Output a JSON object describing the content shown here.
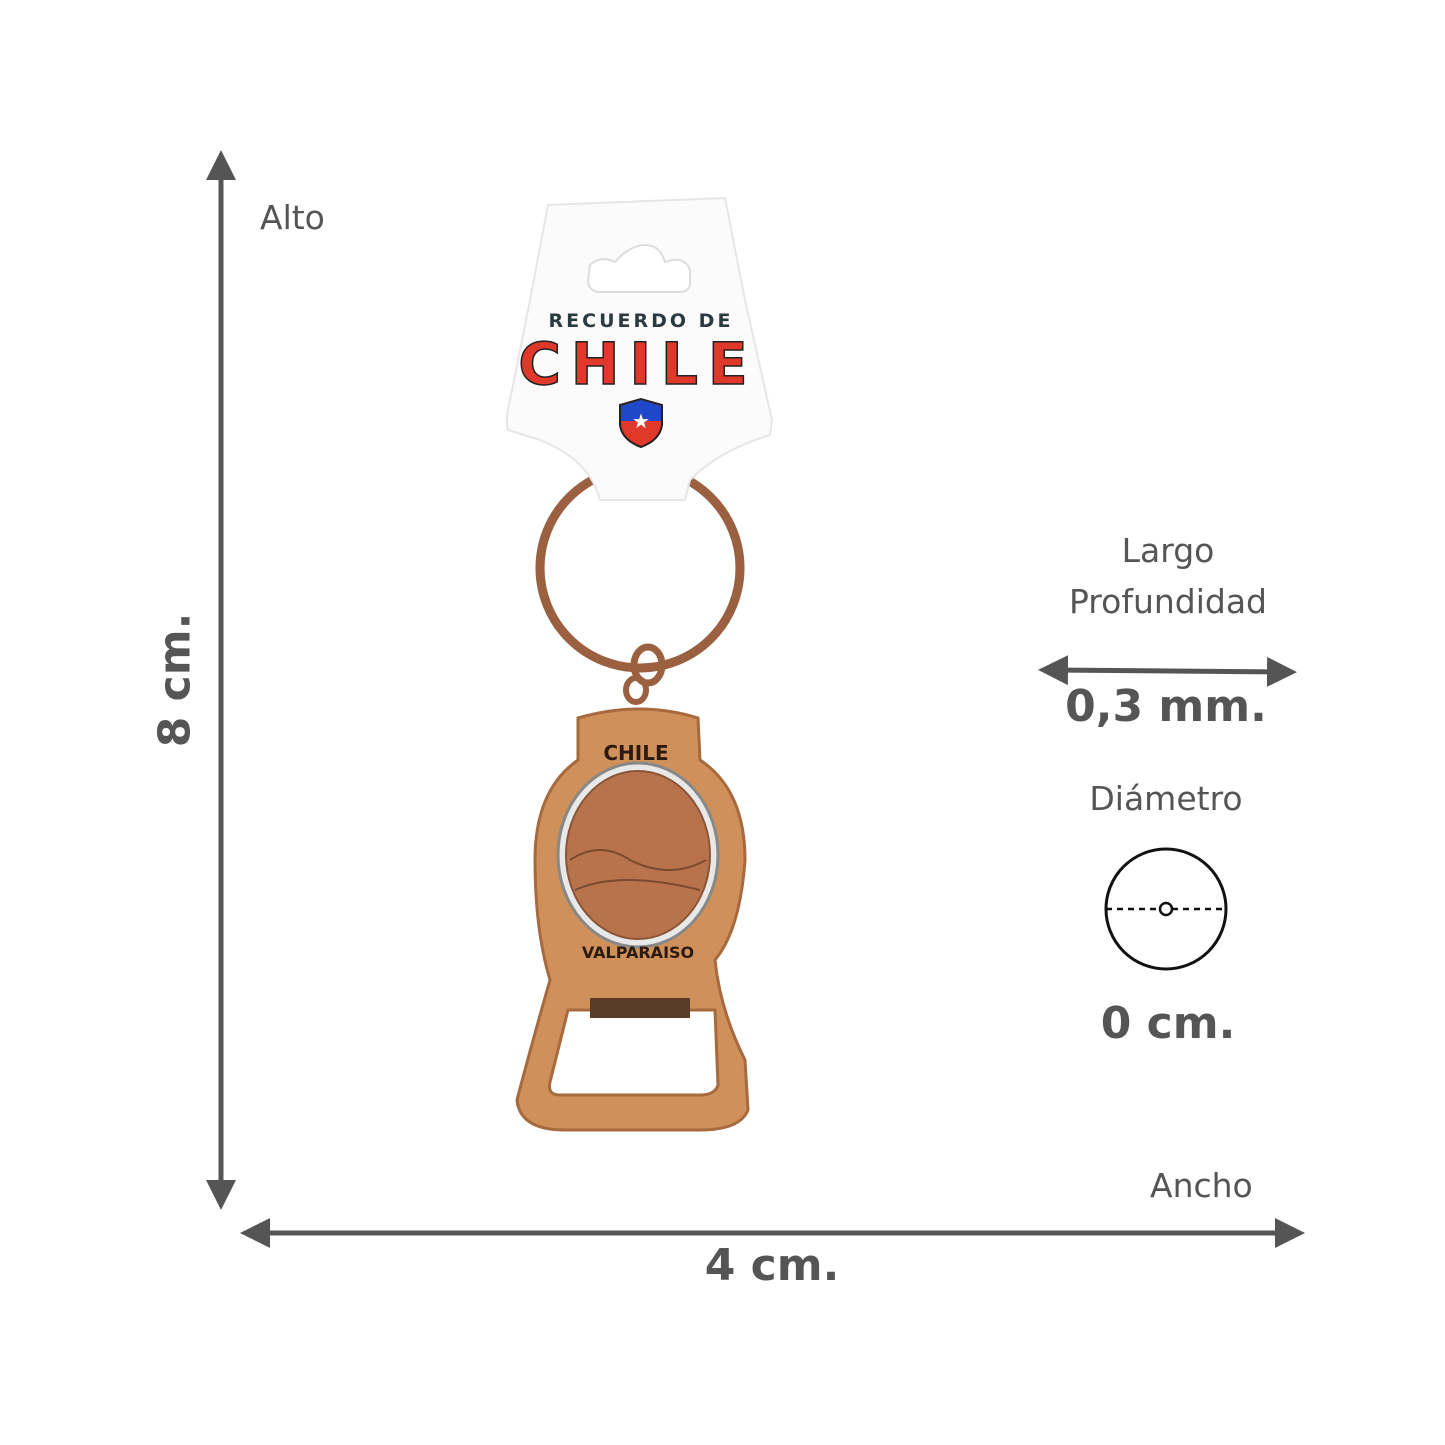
{
  "dimensions": {
    "height": {
      "label": "Alto",
      "value": "8 cm."
    },
    "width": {
      "label": "Ancho",
      "value": "4 cm."
    },
    "depth": {
      "label_1": "Largo",
      "label_2": "Profundidad",
      "value": "0,3 mm."
    },
    "diameter": {
      "label": "Diámetro",
      "value": "0 cm."
    }
  },
  "product": {
    "tag_line": "RECUERDO DE",
    "tag_brand": "CHILE",
    "medal_top": "CHILE",
    "medal_bottom": "VALPARAISO"
  },
  "colors": {
    "arrow": "#555555",
    "copper": "#d0905a",
    "copper_dark": "#8a5536",
    "red": "#e0382a",
    "blue": "#1f47c9"
  }
}
